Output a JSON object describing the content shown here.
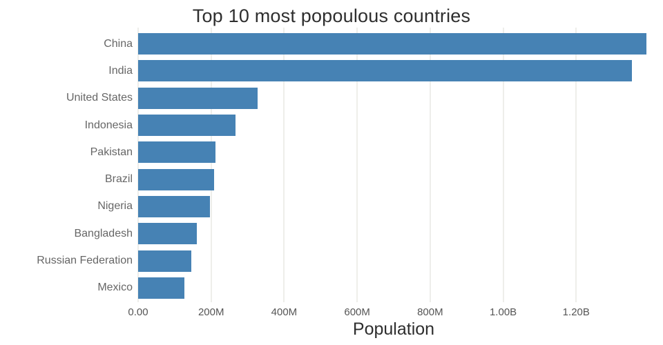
{
  "chart_data": {
    "type": "bar",
    "orientation": "horizontal",
    "title": "Top 10 most popoulous countries",
    "xlabel": "Population",
    "ylabel": "",
    "categories": [
      "China",
      "India",
      "United States",
      "Indonesia",
      "Pakistan",
      "Brazil",
      "Nigeria",
      "Bangladesh",
      "Russian Federation",
      "Mexico"
    ],
    "values": [
      1393000000,
      1353000000,
      327000000,
      267000000,
      212000000,
      209000000,
      196000000,
      161000000,
      145000000,
      126000000
    ],
    "xlim": [
      0,
      1400000000
    ],
    "xticks": [
      {
        "value": 0,
        "label": "0.00"
      },
      {
        "value": 200000000,
        "label": "200M"
      },
      {
        "value": 400000000,
        "label": "400M"
      },
      {
        "value": 600000000,
        "label": "600M"
      },
      {
        "value": 800000000,
        "label": "800M"
      },
      {
        "value": 1000000000,
        "label": "1.00B"
      },
      {
        "value": 1200000000,
        "label": "1.20B"
      }
    ],
    "bar_color": "#4682b4",
    "grid": true,
    "legend": "none"
  }
}
